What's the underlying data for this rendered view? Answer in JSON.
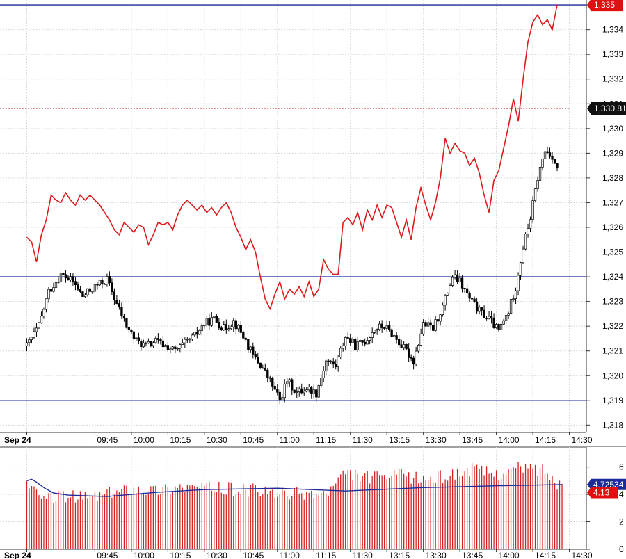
{
  "chart_data": [
    {
      "type": "candlestick",
      "panel": "price",
      "ylim": [
        1317.7,
        1335.2
      ],
      "y_ticks": [
        "1,318",
        "1,319",
        "1,320",
        "1,321",
        "1,322",
        "1,323",
        "1,324",
        "1,325",
        "1,326",
        "1,327",
        "1,328",
        "1,329",
        "1,330",
        "1,331",
        "1,332",
        "1,333",
        "1,334",
        "1,335"
      ],
      "x_ticks": [
        {
          "label": "Sep 24",
          "bold": true,
          "min": 557
        },
        {
          "label": "09:45",
          "min": 585
        },
        {
          "label": "10:00",
          "min": 600
        },
        {
          "label": "10:15",
          "min": 615
        },
        {
          "label": "10:30",
          "min": 630
        },
        {
          "label": "10:45",
          "min": 645
        },
        {
          "label": "11:00",
          "min": 660
        },
        {
          "label": "11:15",
          "min": 675
        },
        {
          "label": "11:30",
          "min": 690
        },
        {
          "label": "13:15",
          "min": 705
        },
        {
          "label": "13:30",
          "min": 720
        },
        {
          "label": "13:45",
          "min": 735
        },
        {
          "label": "14:00",
          "min": 750
        },
        {
          "label": "14:15",
          "min": 765
        },
        {
          "label": "14:30",
          "min": 780
        }
      ],
      "horizontal_lines": [
        {
          "value": 1335.0,
          "color": "#1c2a9c",
          "style": "solid"
        },
        {
          "value": 1324.0,
          "color": "#1c2a9c",
          "style": "solid"
        },
        {
          "value": 1319.0,
          "color": "#1c2a9c",
          "style": "solid"
        },
        {
          "value": 1330.81,
          "color": "#c02020",
          "style": "dotted"
        }
      ],
      "price_tags": [
        {
          "text": "1,335",
          "value": 1335.0,
          "color": "#e01010"
        },
        {
          "text": "1,330.81",
          "value": 1330.81,
          "color": "#111111"
        }
      ],
      "candle_path": [
        [
          557,
          1321.2
        ],
        [
          562,
          1322.0
        ],
        [
          566,
          1323.4
        ],
        [
          571,
          1324.1
        ],
        [
          576,
          1323.8
        ],
        [
          580,
          1323.2
        ],
        [
          585,
          1323.6
        ],
        [
          590,
          1323.9
        ],
        [
          594,
          1322.9
        ],
        [
          598,
          1322.0
        ],
        [
          602,
          1321.4
        ],
        [
          606,
          1321.2
        ],
        [
          610,
          1321.4
        ],
        [
          614,
          1321.2
        ],
        [
          618,
          1321.0
        ],
        [
          622,
          1321.3
        ],
        [
          626,
          1321.6
        ],
        [
          630,
          1322.1
        ],
        [
          634,
          1322.3
        ],
        [
          638,
          1321.9
        ],
        [
          642,
          1322.2
        ],
        [
          646,
          1321.6
        ],
        [
          650,
          1320.8
        ],
        [
          654,
          1320.3
        ],
        [
          658,
          1319.6
        ],
        [
          661,
          1319.0
        ],
        [
          664,
          1319.8
        ],
        [
          668,
          1319.3
        ],
        [
          672,
          1319.5
        ],
        [
          676,
          1319.3
        ],
        [
          680,
          1320.6
        ],
        [
          684,
          1320.4
        ],
        [
          688,
          1321.6
        ],
        [
          692,
          1321.2
        ],
        [
          696,
          1321.4
        ],
        [
          700,
          1321.9
        ],
        [
          704,
          1322.0
        ],
        [
          708,
          1321.6
        ],
        [
          712,
          1321.1
        ],
        [
          716,
          1320.6
        ],
        [
          720,
          1322.1
        ],
        [
          724,
          1321.9
        ],
        [
          728,
          1322.8
        ],
        [
          732,
          1324.0
        ],
        [
          735,
          1323.8
        ],
        [
          739,
          1323.1
        ],
        [
          743,
          1322.6
        ],
        [
          747,
          1322.3
        ],
        [
          751,
          1321.8
        ],
        [
          755,
          1322.6
        ],
        [
          758,
          1323.6
        ],
        [
          761,
          1325.2
        ],
        [
          764,
          1326.4
        ],
        [
          767,
          1328.0
        ],
        [
          770,
          1329.1
        ],
        [
          773,
          1328.9
        ],
        [
          775,
          1328.3
        ]
      ],
      "red_line": [
        [
          557,
          1325.6
        ],
        [
          559,
          1325.4
        ],
        [
          561,
          1324.6
        ],
        [
          563,
          1325.7
        ],
        [
          565,
          1326.3
        ],
        [
          567,
          1327.3
        ],
        [
          569,
          1327.1
        ],
        [
          571,
          1327.0
        ],
        [
          573,
          1327.4
        ],
        [
          575,
          1327.1
        ],
        [
          577,
          1326.9
        ],
        [
          579,
          1327.3
        ],
        [
          581,
          1327.1
        ],
        [
          583,
          1327.3
        ],
        [
          585,
          1327.1
        ],
        [
          587,
          1326.9
        ],
        [
          589,
          1326.6
        ],
        [
          591,
          1326.3
        ],
        [
          593,
          1325.9
        ],
        [
          595,
          1325.7
        ],
        [
          597,
          1326.2
        ],
        [
          599,
          1326.0
        ],
        [
          601,
          1325.8
        ],
        [
          603,
          1326.1
        ],
        [
          605,
          1326.0
        ],
        [
          607,
          1325.3
        ],
        [
          609,
          1325.7
        ],
        [
          611,
          1326.2
        ],
        [
          613,
          1326.1
        ],
        [
          615,
          1326.2
        ],
        [
          617,
          1325.9
        ],
        [
          619,
          1326.5
        ],
        [
          621,
          1326.9
        ],
        [
          623,
          1327.1
        ],
        [
          625,
          1326.9
        ],
        [
          627,
          1326.7
        ],
        [
          629,
          1326.9
        ],
        [
          631,
          1326.6
        ],
        [
          633,
          1326.8
        ],
        [
          635,
          1326.5
        ],
        [
          637,
          1326.8
        ],
        [
          639,
          1327.0
        ],
        [
          641,
          1326.6
        ],
        [
          643,
          1326.0
        ],
        [
          645,
          1325.6
        ],
        [
          647,
          1325.1
        ],
        [
          649,
          1325.5
        ],
        [
          651,
          1325.0
        ],
        [
          653,
          1324.0
        ],
        [
          655,
          1323.1
        ],
        [
          657,
          1322.7
        ],
        [
          659,
          1323.3
        ],
        [
          661,
          1323.8
        ],
        [
          663,
          1323.1
        ],
        [
          665,
          1323.5
        ],
        [
          667,
          1323.3
        ],
        [
          669,
          1323.6
        ],
        [
          671,
          1323.2
        ],
        [
          673,
          1323.8
        ],
        [
          675,
          1323.2
        ],
        [
          677,
          1323.5
        ],
        [
          679,
          1324.7
        ],
        [
          681,
          1324.3
        ],
        [
          683,
          1324.1
        ],
        [
          685,
          1324.1
        ],
        [
          687,
          1326.2
        ],
        [
          689,
          1326.4
        ],
        [
          691,
          1326.1
        ],
        [
          693,
          1326.6
        ],
        [
          695,
          1325.9
        ],
        [
          697,
          1326.7
        ],
        [
          699,
          1326.3
        ],
        [
          701,
          1326.9
        ],
        [
          703,
          1326.4
        ],
        [
          705,
          1326.9
        ],
        [
          707,
          1326.8
        ],
        [
          709,
          1326.2
        ],
        [
          711,
          1325.6
        ],
        [
          713,
          1326.3
        ],
        [
          715,
          1325.5
        ],
        [
          717,
          1326.8
        ],
        [
          719,
          1327.6
        ],
        [
          721,
          1326.9
        ],
        [
          723,
          1326.3
        ],
        [
          725,
          1327.0
        ],
        [
          727,
          1328.0
        ],
        [
          729,
          1329.6
        ],
        [
          731,
          1329.0
        ],
        [
          733,
          1329.4
        ],
        [
          735,
          1329.1
        ],
        [
          737,
          1329.0
        ],
        [
          739,
          1328.5
        ],
        [
          741,
          1328.8
        ],
        [
          743,
          1328.2
        ],
        [
          745,
          1327.3
        ],
        [
          747,
          1326.6
        ],
        [
          749,
          1327.9
        ],
        [
          751,
          1328.3
        ],
        [
          753,
          1329.2
        ],
        [
          755,
          1330.1
        ],
        [
          757,
          1331.2
        ],
        [
          759,
          1330.3
        ],
        [
          761,
          1332.0
        ],
        [
          763,
          1333.5
        ],
        [
          765,
          1334.3
        ],
        [
          767,
          1334.6
        ],
        [
          769,
          1334.2
        ],
        [
          771,
          1334.4
        ],
        [
          773,
          1334.0
        ],
        [
          775,
          1335.0
        ]
      ]
    },
    {
      "type": "bar",
      "panel": "volume",
      "ylim": [
        0,
        7.2
      ],
      "y_ticks": [
        "0",
        "2",
        "4",
        "6"
      ],
      "x_ticks": [
        "Sep 24",
        "09:45",
        "10:00",
        "10:15",
        "10:30",
        "10:45",
        "11:00",
        "11:15",
        "11:30",
        "13:15",
        "13:30",
        "13:45",
        "14:00",
        "14:15",
        "14:30"
      ],
      "bar_level_profile": [
        [
          557,
          5.0
        ],
        [
          562,
          3.6
        ],
        [
          570,
          3.9
        ],
        [
          580,
          3.8
        ],
        [
          590,
          4.0
        ],
        [
          600,
          4.5
        ],
        [
          610,
          4.3
        ],
        [
          620,
          4.6
        ],
        [
          630,
          4.5
        ],
        [
          640,
          4.4
        ],
        [
          650,
          4.3
        ],
        [
          660,
          4.0
        ],
        [
          670,
          4.1
        ],
        [
          680,
          4.0
        ],
        [
          688,
          5.5
        ],
        [
          700,
          5.2
        ],
        [
          710,
          5.4
        ],
        [
          720,
          5.1
        ],
        [
          730,
          5.4
        ],
        [
          740,
          5.8
        ],
        [
          750,
          5.5
        ],
        [
          760,
          6.0
        ],
        [
          770,
          5.8
        ],
        [
          777,
          4.3
        ]
      ],
      "average_line": [
        [
          557,
          5.0
        ],
        [
          559,
          5.1
        ],
        [
          561,
          4.9
        ],
        [
          564,
          4.5
        ],
        [
          568,
          4.1
        ],
        [
          574,
          3.95
        ],
        [
          590,
          3.85
        ],
        [
          610,
          4.15
        ],
        [
          630,
          4.35
        ],
        [
          660,
          4.45
        ],
        [
          688,
          4.25
        ],
        [
          720,
          4.5
        ],
        [
          750,
          4.63
        ],
        [
          777,
          4.72
        ]
      ],
      "value_tags": [
        {
          "text": "4.72534",
          "value": 4.72534,
          "color": "#1c2a9c"
        },
        {
          "text": "4.13",
          "value": 4.13,
          "color": "#e01010"
        }
      ]
    }
  ]
}
